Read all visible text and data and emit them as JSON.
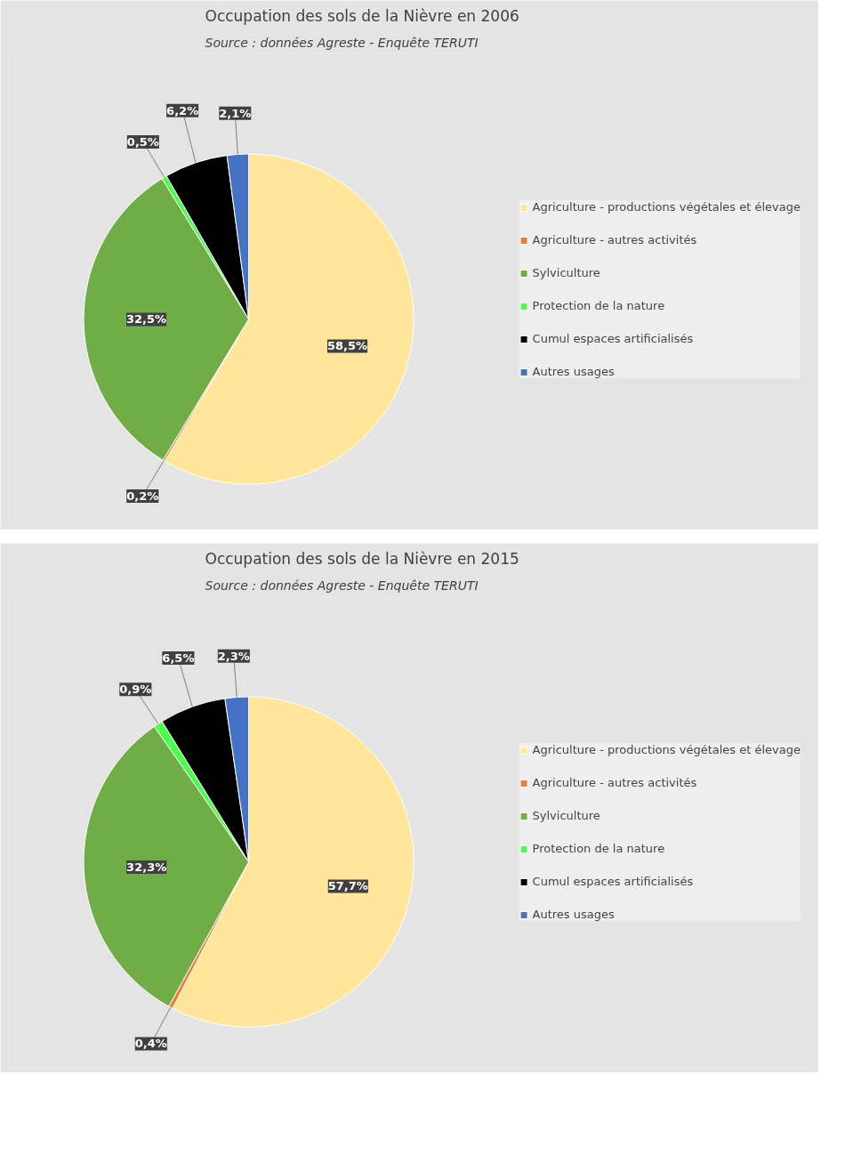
{
  "chart_data": [
    {
      "type": "pie",
      "title": "Occupation des sols de la Nièvre en 2006",
      "subtitle": "Source : données Agreste - Enquête TERUTI",
      "categories": [
        "Agriculture - productions végétales et élevage",
        "Agriculture - autres activités",
        "Sylviculture",
        "Protection de la nature",
        "Cumul espaces artificialisés",
        "Autres usages"
      ],
      "values": [
        58.5,
        0.2,
        32.5,
        0.5,
        6.2,
        2.1
      ],
      "value_labels": [
        "58,5%",
        "0,2%",
        "32,5%",
        "0,5%",
        "6,2%",
        "2,1%"
      ],
      "colors": [
        "#ffe699",
        "#ed7d31",
        "#70ad47",
        "#4dff4d",
        "#000000",
        "#4472c4"
      ],
      "legend": "right"
    },
    {
      "type": "pie",
      "title": "Occupation des sols de la Nièvre en 2015",
      "subtitle": "Source : données Agreste - Enquête TERUTI",
      "categories": [
        "Agriculture - productions végétales et élevage",
        "Agriculture - autres activités",
        "Sylviculture",
        "Protection de la nature",
        "Cumul espaces artificialisés",
        "Autres usages"
      ],
      "values": [
        57.7,
        0.4,
        32.3,
        0.9,
        6.5,
        2.3
      ],
      "value_labels": [
        "57,7%",
        "0,4%",
        "32,3%",
        "0,9%",
        "6,5%",
        "2,3%"
      ],
      "colors": [
        "#ffe699",
        "#ed7d31",
        "#70ad47",
        "#4dff4d",
        "#000000",
        "#4472c4"
      ],
      "legend": "right"
    }
  ]
}
